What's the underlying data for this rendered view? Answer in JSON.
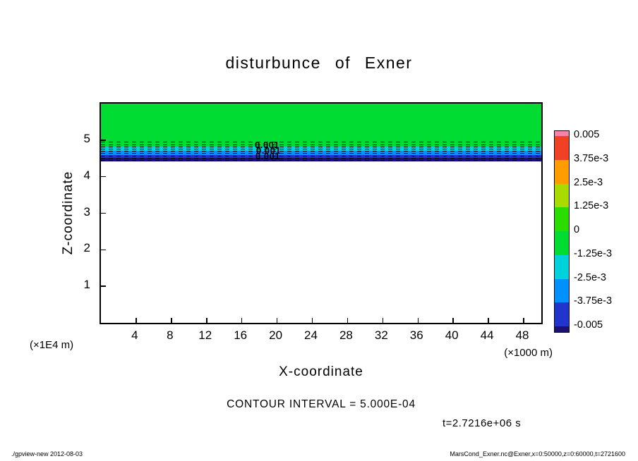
{
  "title": "disturbunce of Exner",
  "x_axis": {
    "label": "X-coordinate",
    "unit_note": "(×1000 m)",
    "ticks": [
      "4",
      "8",
      "12",
      "16",
      "20",
      "24",
      "28",
      "32",
      "36",
      "40",
      "44",
      "48"
    ],
    "min": 0,
    "max": 50
  },
  "y_axis": {
    "label": "Z-coordinate",
    "unit_note": "(×1E4 m)",
    "ticks": [
      "1",
      "2",
      "3",
      "4",
      "5"
    ],
    "min": 0,
    "max": 6
  },
  "colorbar": {
    "labels": [
      "0.005",
      "3.75e-3",
      "2.5e-3",
      "1.25e-3",
      "0",
      "-1.25e-3",
      "-2.5e-3",
      "-3.75e-3",
      "-0.005"
    ],
    "band_colors": [
      "#f584a8",
      "#ef4123",
      "#ff9d00",
      "#a8dc00",
      "#2bdc00",
      "#00dc32",
      "#00d2dc",
      "#0091ff",
      "#2134cc",
      "#1a1076"
    ]
  },
  "captions": {
    "contour_interval": "CONTOUR INTERVAL = 5.000E-04",
    "time": "t=2.7216e+06 s"
  },
  "contour_labels": [
    "0.001",
    "0.001",
    "0.001"
  ],
  "footer": {
    "left": "./gpview-new  2012-08-03",
    "right": "MarsCond_Exner.nc@Exner,x=0:50000,z=0:60000,t=2721600"
  },
  "chart_data": {
    "type": "heatmap",
    "title": "disturbunce of Exner",
    "xlabel": "X-coordinate (×1000 m)",
    "ylabel": "Z-coordinate (×1E4 m)",
    "xlim": [
      0,
      50
    ],
    "ylim": [
      0,
      6
    ],
    "contour_interval": 0.0005,
    "time_s": 2721600,
    "colorbar_levels": [
      0.005,
      0.00375,
      0.0025,
      0.00125,
      0,
      -0.00125,
      -0.0025,
      -0.00375,
      -0.005
    ],
    "field_layers": [
      {
        "z_from": 4.83,
        "z_to": 6.0,
        "color": "#00dc32",
        "value_range": "0 to -1.25e-3"
      },
      {
        "z_from": 4.7,
        "z_to": 4.83,
        "color": "#00d2dc",
        "value_range": "-1.25e-3 to -2.5e-3"
      },
      {
        "z_from": 4.6,
        "z_to": 4.7,
        "color": "#0091ff",
        "value_range": "-2.5e-3 to -3.75e-3"
      },
      {
        "z_from": 4.52,
        "z_to": 4.6,
        "color": "#2134cc",
        "value_range": "-3.75e-3 to -0.005"
      },
      {
        "z_from": 4.42,
        "z_to": 4.52,
        "color": "#1a1076",
        "value_range": "< -0.005"
      },
      {
        "z_from": 0.0,
        "z_to": 4.42,
        "color": "#ffffff",
        "value_range": "0 (undisturbed)"
      }
    ],
    "contour_line_z": [
      4.95,
      4.88,
      4.82,
      4.76,
      4.7,
      4.64,
      4.58,
      4.52,
      4.46
    ],
    "contour_label_value": "0.001"
  }
}
